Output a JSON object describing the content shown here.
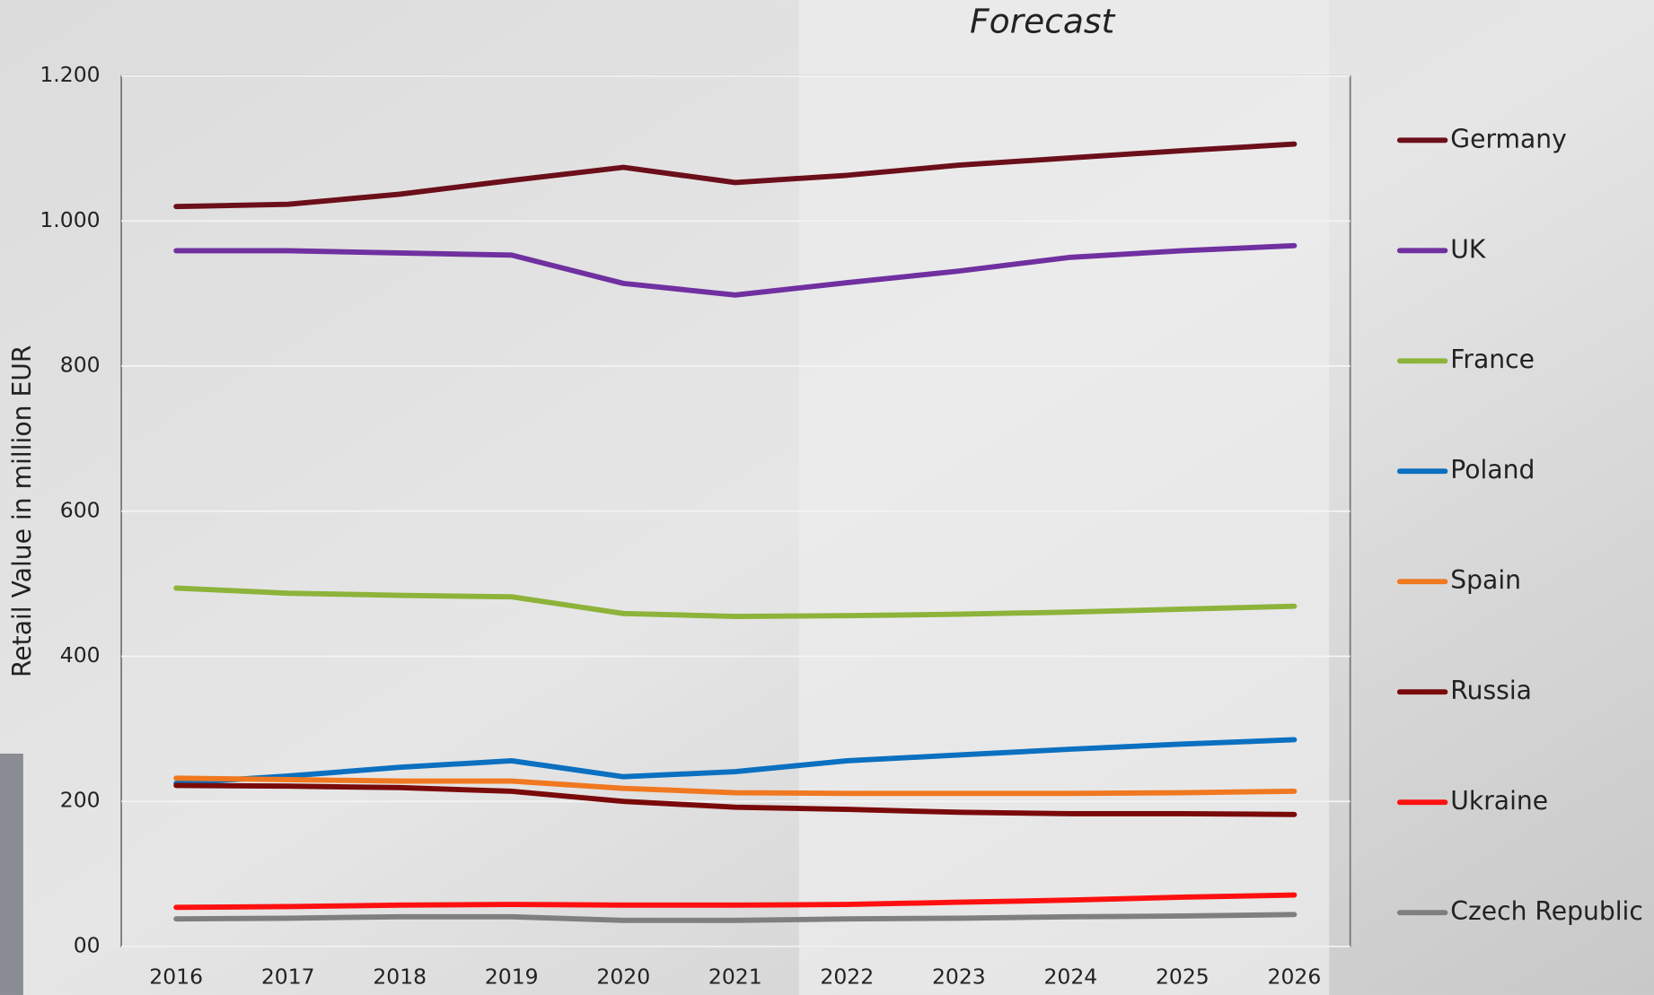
{
  "chart_data": {
    "type": "line",
    "annotation": "Forecast",
    "y_label": "Retail Value in million EUR",
    "categories": [
      "2016",
      "2017",
      "2018",
      "2019",
      "2020",
      "2021",
      "2022",
      "2023",
      "2024",
      "2025",
      "2026"
    ],
    "forecast_start": "2022",
    "ylim": [
      0,
      1200
    ],
    "yticks": [
      {
        "value": 0,
        "label": "00"
      },
      200,
      400,
      600,
      800,
      {
        "value": 1000,
        "label": "1.000"
      },
      {
        "value": 1200,
        "label": "1.200"
      }
    ],
    "grid": true,
    "legend": "right",
    "series": [
      {
        "name": "Germany",
        "color": "#6b0f1a",
        "values": [
          1020,
          1023,
          1037,
          1056,
          1074,
          1053,
          1063,
          1077,
          1087,
          1097,
          1106
        ]
      },
      {
        "name": "UK",
        "color": "#7030a0",
        "values": [
          959,
          959,
          956,
          953,
          914,
          898,
          915,
          931,
          950,
          959,
          966
        ]
      },
      {
        "name": "France",
        "color": "#8db33a",
        "values": [
          494,
          487,
          484,
          482,
          459,
          455,
          456,
          458,
          461,
          465,
          469
        ]
      },
      {
        "name": "Poland",
        "color": "#0b70c0",
        "values": [
          225,
          235,
          247,
          256,
          234,
          241,
          256,
          264,
          272,
          279,
          285
        ]
      },
      {
        "name": "Spain",
        "color": "#f07820",
        "values": [
          232,
          230,
          228,
          228,
          218,
          212,
          211,
          211,
          211,
          212,
          214
        ]
      },
      {
        "name": "Russia",
        "color": "#7a0a0a",
        "values": [
          222,
          221,
          219,
          214,
          200,
          192,
          189,
          185,
          183,
          183,
          182
        ]
      },
      {
        "name": "Ukraine",
        "color": "#ff1010",
        "values": [
          54,
          55,
          57,
          58,
          57,
          57,
          58,
          61,
          64,
          68,
          71
        ]
      },
      {
        "name": "Czech Republic",
        "color": "#7f7f7f",
        "values": [
          38,
          39,
          41,
          41,
          36,
          36,
          38,
          39,
          41,
          42,
          44
        ]
      }
    ]
  }
}
